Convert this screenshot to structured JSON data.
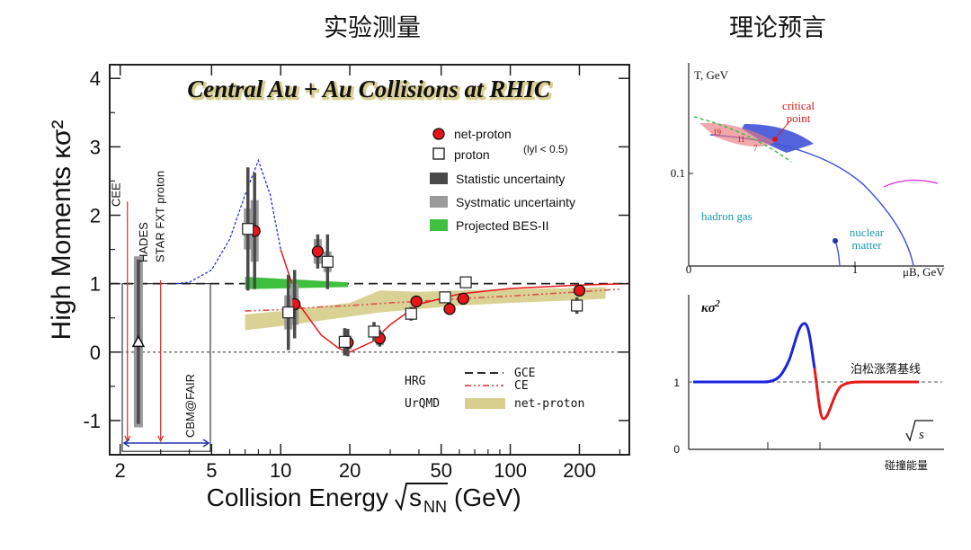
{
  "headings": {
    "left": "实验测量",
    "right": "理论预言"
  },
  "chart_data": [
    {
      "type": "scatter",
      "title": "Central Au + Au Collisions at RHIC",
      "xlabel": "Collision Energy",
      "xlabel_sqrt": "s",
      "xlabel_sub": "NN",
      "xlabel_unit": "(GeV)",
      "ylabel": "High Moments κσ²",
      "xscale": "log",
      "xlim": [
        1.8,
        330
      ],
      "ylim": [
        -1.5,
        4.2
      ],
      "xticks": [
        2,
        5,
        10,
        20,
        50,
        100,
        200
      ],
      "yticks": [
        -1,
        0,
        1,
        2,
        3,
        4
      ],
      "colors": {
        "net_proton": "#e8161a",
        "projected": "#3fbf3f",
        "urqmd": "#d8cf8f",
        "ce": "#d9534f",
        "gce": "#222222",
        "hrg_dash": "#2233dd",
        "limit": "#2233aa",
        "facility": "#e03a3a"
      },
      "series": [
        {
          "name": "net-proton",
          "points": [
            [
              7.7,
              1.77
            ],
            [
              11.5,
              0.7
            ],
            [
              14.5,
              1.47
            ],
            [
              19.6,
              0.14
            ],
            [
              27,
              0.2
            ],
            [
              39,
              0.74
            ],
            [
              54.4,
              0.63
            ],
            [
              62.4,
              0.78
            ],
            [
              200,
              0.9
            ]
          ],
          "stat": [
            0.85,
            0.5,
            0.25,
            0.2,
            0.12,
            0.07,
            0.07,
            0.07,
            0.05
          ],
          "sys": [
            0.45,
            0.3,
            0.18,
            0.1,
            0.1,
            0.05,
            0.06,
            0.05,
            0.04
          ]
        },
        {
          "name": "proton",
          "points": [
            [
              7.2,
              1.8
            ],
            [
              10.8,
              0.58
            ],
            [
              16,
              1.32
            ],
            [
              19,
              0.15
            ],
            [
              25.5,
              0.3
            ],
            [
              37,
              0.56
            ],
            [
              52,
              0.8
            ],
            [
              64,
              1.02
            ],
            [
              195,
              0.68
            ]
          ],
          "stat": [
            0.9,
            0.55,
            0.4,
            0.2,
            0.14,
            0.1,
            0.08,
            0.05,
            0.12
          ],
          "sys": [
            0.3,
            0.25,
            0.15,
            0.08,
            0.08,
            0.06,
            0.05,
            0.04,
            0.06
          ]
        },
        {
          "name": "HADES",
          "points": [
            [
              2.4,
              0.15
            ]
          ],
          "stat": [
            1.2
          ],
          "sys": [
            1.25
          ]
        }
      ],
      "projected_band": {
        "x": [
          7,
          19.6
        ],
        "y_low": [
          0.92,
          0.95
        ],
        "y_high": [
          1.1,
          1.02
        ]
      },
      "urqmd_band": {
        "x": [
          7,
          10,
          20,
          27,
          40,
          60,
          100,
          200,
          260
        ],
        "y_low": [
          0.32,
          0.38,
          0.52,
          0.58,
          0.63,
          0.68,
          0.72,
          0.76,
          0.78
        ],
        "y_high": [
          0.55,
          0.6,
          0.72,
          0.9,
          0.88,
          0.9,
          0.92,
          0.94,
          0.95
        ]
      },
      "ce_line": {
        "x": [
          7,
          10,
          15,
          20,
          30,
          40,
          60,
          100,
          200,
          300
        ],
        "y": [
          0.6,
          0.62,
          0.66,
          0.68,
          0.72,
          0.74,
          0.78,
          0.82,
          0.88,
          0.92
        ]
      },
      "gce_line": {
        "x": [
          1.8,
          330
        ],
        "y": [
          1,
          1
        ]
      },
      "theory_curve": {
        "x": [
          3.5,
          4,
          5,
          6,
          7,
          8,
          9,
          10,
          12,
          15,
          18,
          20,
          25,
          30,
          40,
          60,
          100,
          200,
          330
        ],
        "y": [
          1,
          1.02,
          1.2,
          1.65,
          2.3,
          2.8,
          2.3,
          1.5,
          0.7,
          0.25,
          0.05,
          0.0,
          0.15,
          0.4,
          0.7,
          0.85,
          0.93,
          0.98,
          1.0
        ]
      },
      "facilities": [
        {
          "label": "CEE",
          "x": 2.15
        },
        {
          "label": "HADES",
          "x": 2.4
        },
        {
          "label": "STAR FXT proton",
          "x": 3.0
        },
        {
          "label": "CBM@FAIR",
          "x": 4.2
        }
      ],
      "legend": {
        "net_proton": "net-proton",
        "proton": "proton",
        "proton_cut": "(lyl < 0.5)",
        "stat": "Statistic uncertainty",
        "sys": "Systmatic uncertainty",
        "projected": "Projected BES-II"
      },
      "model_legend": {
        "hrg": "HRG",
        "gce": "GCE",
        "ce": "CE",
        "urqmd": "UrQMD",
        "urqmd_series": "net-proton"
      },
      "legend_position": "right",
      "grid": false
    },
    {
      "type": "line",
      "title": "",
      "xlabel": "μB, GeV",
      "ylabel": "T, GeV",
      "xticks": [
        0,
        1
      ],
      "yticks": [
        0.1
      ],
      "labels": {
        "critical": "critical",
        "point": "point",
        "hadron_gas": "hadron gas",
        "nuclear": "nuclear",
        "matter": "matter"
      },
      "points": [
        {
          "label": "19",
          "x": 0.2,
          "y": 0.158
        },
        {
          "label": "11",
          "x": 0.35,
          "y": 0.143
        },
        {
          "label": "7",
          "x": 0.42,
          "y": 0.135
        }
      ],
      "grid": false
    },
    {
      "type": "line",
      "title": "",
      "xlabel": "碰撞能量",
      "xvar": "s",
      "ylabel": "κσ²",
      "yticks": [
        0,
        1
      ],
      "baseline_label": "泊松涨落基线",
      "colors": {
        "rise": "#1a24e0",
        "dip": "#e81a1a",
        "baseline": "#555555"
      },
      "grid": false
    }
  ]
}
